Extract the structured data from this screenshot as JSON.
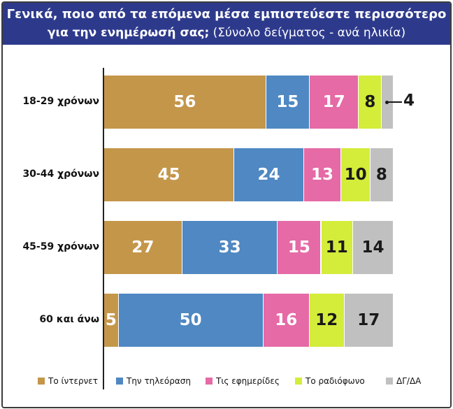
{
  "title": {
    "line1": "Γενικά, ποιο από τα επόμενα μέσα εμπιστεύεστε περισσότερο",
    "line2_bold": "για την ενημέρωσή σας;",
    "line2_rest": " (Σύνολο δείγματος - ανά ηλικία)"
  },
  "chart_data": {
    "type": "bar",
    "orientation": "horizontal",
    "stacked": true,
    "categories": [
      "18-29 χρόνων",
      "30-44 χρόνων",
      "45-59 χρόνων",
      "60 και άνω"
    ],
    "series": [
      {
        "name": "Το ίντερνετ",
        "color": "#c4964a",
        "values": [
          56,
          45,
          27,
          5
        ]
      },
      {
        "name": "Την τηλεόραση",
        "color": "#4f88c2",
        "values": [
          15,
          24,
          33,
          50
        ]
      },
      {
        "name": "Τις εφημερίδες",
        "color": "#e56aa6",
        "values": [
          17,
          13,
          15,
          16
        ]
      },
      {
        "name": "Το ραδιόφωνο",
        "color": "#d4ec3a",
        "values": [
          8,
          10,
          11,
          12
        ]
      },
      {
        "name": "ΔΓ/ΔΑ",
        "color": "#c0c0c0",
        "values": [
          4,
          8,
          14,
          17
        ]
      }
    ],
    "data_labels": [
      [
        "56",
        "15",
        "17",
        "8",
        "4"
      ],
      [
        "45",
        "24",
        "13",
        "10",
        "8"
      ],
      [
        "27",
        "33",
        "15",
        "11",
        "14"
      ],
      [
        "5",
        "50",
        "16",
        "12",
        "17"
      ]
    ],
    "xlim": [
      0,
      100
    ],
    "grid": false,
    "legend_position": "bottom"
  }
}
